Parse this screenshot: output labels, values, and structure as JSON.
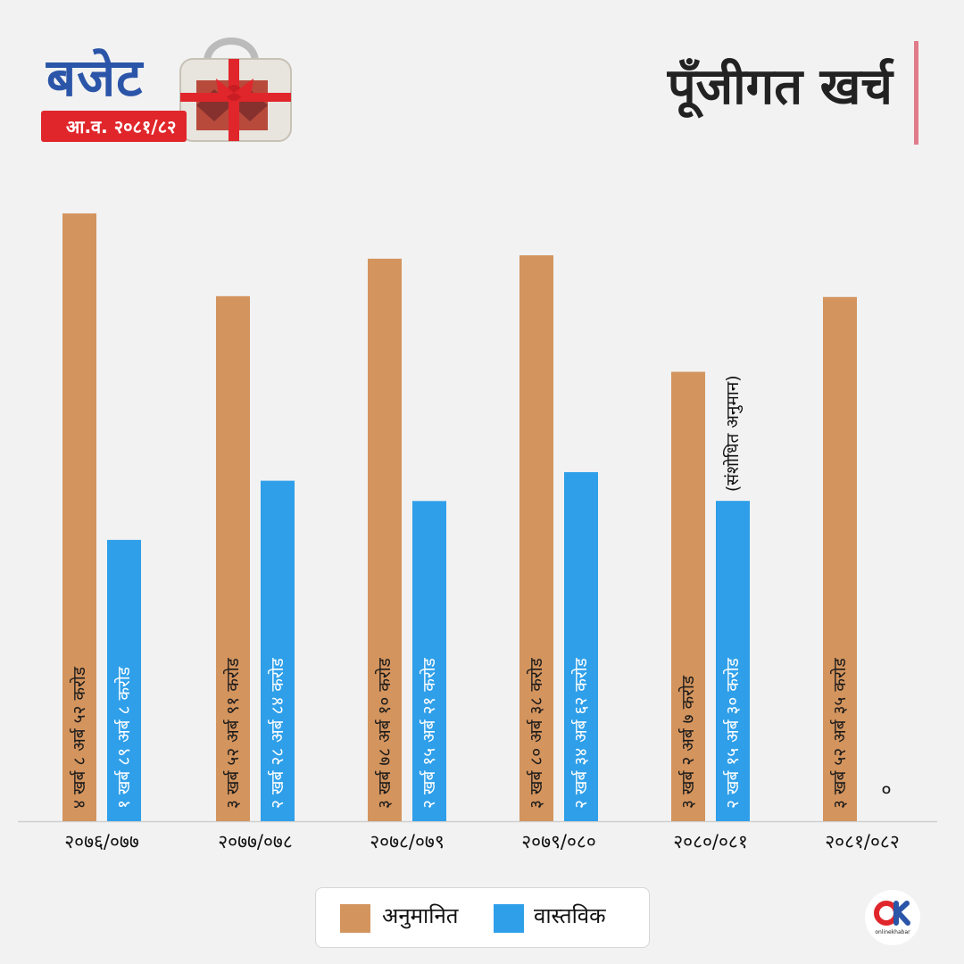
{
  "header": {
    "logo_word": "बजेट",
    "logo_year": "आ.व. २०८१/८२",
    "title": "पूँजीगत खर्च"
  },
  "colors": {
    "estimated": "#d3945e",
    "actual": "#2f9fe9",
    "background": "#f2f2f2",
    "logo_blue": "#2b55a8",
    "logo_red": "#e0262b",
    "title_bar": "#e07b8a"
  },
  "chart_data": {
    "type": "bar",
    "categories": [
      "२०७६/०७७",
      "२०७७/०७८",
      "२०७८/०७९",
      "२०७९/०८०",
      "२०८०/०८१",
      "२०८१/०८२"
    ],
    "series": [
      {
        "name": "अनुमानित",
        "values": [
          408.52,
          352.91,
          378.1,
          380.38,
          302.07,
          352.35
        ],
        "labels": [
          "४ खर्ब ८ अर्ब ५२ करोड",
          "३ खर्ब ५२ अर्ब ९१ करोड",
          "३ खर्ब ७८ अर्ब १० करोड",
          "३ खर्ब ८० अर्ब ३८ करोड",
          "३ खर्ब २ अर्ब ७ करोड",
          "३ खर्ब ५२ अर्ब ३५ करोड"
        ]
      },
      {
        "name": "वास्तविक",
        "values": [
          189.08,
          228.84,
          215.21,
          234.62,
          215.3,
          0
        ],
        "labels": [
          "१ खर्ब ८९ अर्ब ८ करोड",
          "२ खर्ब २८ अर्ब ८४ करोड",
          "२ खर्ब १५ अर्ब २१ करोड",
          "२ खर्ब ३४ अर्ब ६२ करोड",
          "२ खर्ब १५ अर्ब ३० करोड",
          "०"
        ]
      }
    ],
    "annotations": [
      {
        "category_index": 4,
        "series": "वास्तविक",
        "text": "(संशोधित अनुमान)"
      }
    ],
    "ylim": [
      0,
      420
    ],
    "y_unit": "अर्ब रुपैयाँ",
    "grid": false,
    "legend": "bottom-center"
  },
  "legend": {
    "items": [
      {
        "label": "अनुमानित",
        "color": "#d3945e"
      },
      {
        "label": "वास्तविक",
        "color": "#2f9fe9"
      }
    ]
  },
  "brand": {
    "text": "onlinekhabar"
  }
}
